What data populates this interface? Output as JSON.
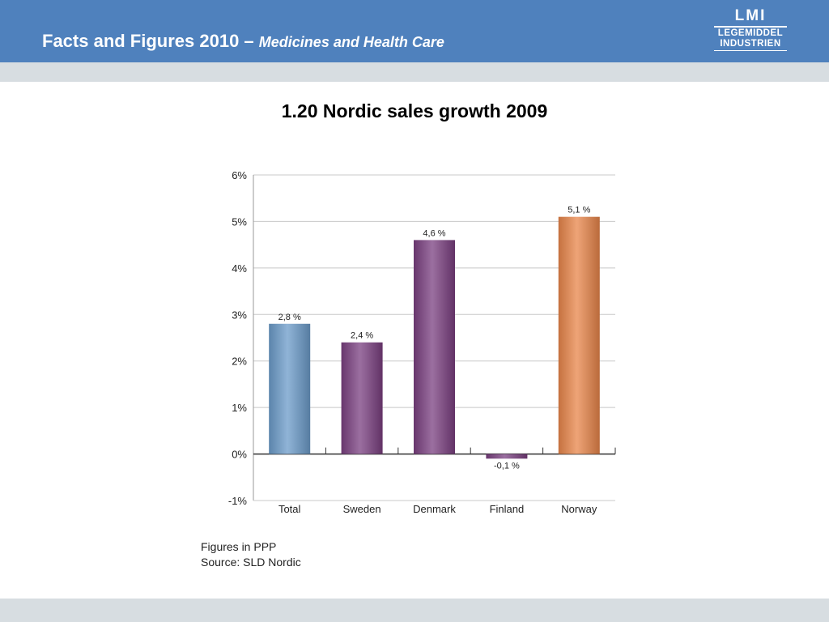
{
  "header": {
    "title": "Facts and Figures 2010 –",
    "subtitle": "Medicines and Health Care",
    "logo": {
      "mark": "LMI",
      "line1": "LEGEMIDDEL",
      "line2": "INDUSTRIEN"
    }
  },
  "slide_title": "1.20 Nordic sales growth 2009",
  "footnote": {
    "line1": "Figures in PPP",
    "line2": "Source: SLD Nordic"
  },
  "chart_data": {
    "type": "bar",
    "title": "",
    "xlabel": "",
    "ylabel": "",
    "categories": [
      "Total",
      "Sweden",
      "Denmark",
      "Finland",
      "Norway"
    ],
    "values": [
      2.8,
      2.4,
      4.6,
      -0.1,
      5.1
    ],
    "data_labels": [
      "2,8 %",
      "2,4 %",
      "4,6 %",
      "-0,1 %",
      "5,1 %"
    ],
    "ylim": [
      -1,
      6
    ],
    "yticks": [
      -1,
      0,
      1,
      2,
      3,
      4,
      5,
      6
    ],
    "ytick_labels": [
      "-1%",
      "0%",
      "1%",
      "2%",
      "3%",
      "4%",
      "5%",
      "6%"
    ],
    "grid": true,
    "legend": "none",
    "colors": [
      "#6b9bc9",
      "#7a3f80",
      "#7a3f80",
      "#7a3f80",
      "#e8854a"
    ]
  }
}
